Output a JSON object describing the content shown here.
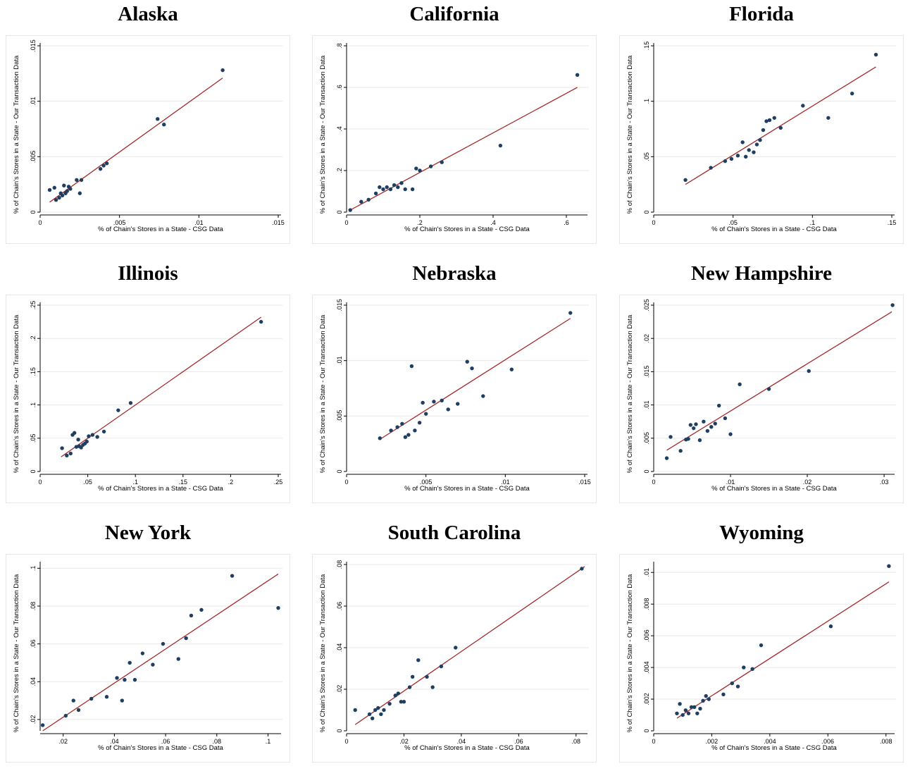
{
  "chart_data": [
    {
      "type": "scatter",
      "title": "Alaska",
      "xlabel": "% of Chain's Stores in a State - CSG Data",
      "ylabel": "% of Chain's Stores in a State - Our Transaction Data",
      "xlim": [
        0,
        0.015
      ],
      "ylim": [
        0,
        0.015
      ],
      "xticks": [
        0,
        0.005,
        0.01,
        0.015
      ],
      "xtick_labels": [
        "0",
        ".005",
        ".01",
        ".015"
      ],
      "yticks": [
        0,
        0.005,
        0.01,
        0.015
      ],
      "ytick_labels": [
        "0",
        ".005",
        ".01",
        ".015"
      ],
      "fit_line": {
        "x": [
          0.0006,
          0.0115
        ],
        "y": [
          0.0009,
          0.0121
        ]
      },
      "points": [
        [
          0.0006,
          0.002
        ],
        [
          0.0009,
          0.0022
        ],
        [
          0.001,
          0.0011
        ],
        [
          0.0012,
          0.0013
        ],
        [
          0.0013,
          0.0017
        ],
        [
          0.0014,
          0.0015
        ],
        [
          0.0015,
          0.0024
        ],
        [
          0.0016,
          0.0017
        ],
        [
          0.0017,
          0.0019
        ],
        [
          0.0018,
          0.0023
        ],
        [
          0.0019,
          0.0021
        ],
        [
          0.0023,
          0.0029
        ],
        [
          0.0025,
          0.0017
        ],
        [
          0.0026,
          0.0029
        ],
        [
          0.0038,
          0.0039
        ],
        [
          0.004,
          0.0042
        ],
        [
          0.0042,
          0.0044
        ],
        [
          0.0074,
          0.0084
        ],
        [
          0.0078,
          0.0079
        ],
        [
          0.0115,
          0.0128
        ]
      ]
    },
    {
      "type": "scatter",
      "title": "California",
      "xlabel": "% of Chain's Stores in a State - CSG Data",
      "ylabel": "% of Chain's Stores in a State - Our Transaction Data",
      "xlim": [
        0,
        0.65
      ],
      "ylim": [
        0,
        0.8
      ],
      "xticks": [
        0,
        0.2,
        0.4,
        0.6
      ],
      "xtick_labels": [
        "0",
        ".2",
        ".4",
        ".6"
      ],
      "yticks": [
        0,
        0.2,
        0.4,
        0.6,
        0.8
      ],
      "ytick_labels": [
        "0",
        ".2",
        ".4",
        ".6",
        ".8"
      ],
      "fit_line": {
        "x": [
          0.01,
          0.63
        ],
        "y": [
          0.01,
          0.6
        ]
      },
      "points": [
        [
          0.01,
          0.01
        ],
        [
          0.04,
          0.05
        ],
        [
          0.06,
          0.06
        ],
        [
          0.08,
          0.09
        ],
        [
          0.09,
          0.12
        ],
        [
          0.1,
          0.11
        ],
        [
          0.11,
          0.12
        ],
        [
          0.12,
          0.11
        ],
        [
          0.13,
          0.13
        ],
        [
          0.14,
          0.12
        ],
        [
          0.15,
          0.14
        ],
        [
          0.16,
          0.11
        ],
        [
          0.18,
          0.11
        ],
        [
          0.19,
          0.21
        ],
        [
          0.2,
          0.2
        ],
        [
          0.23,
          0.22
        ],
        [
          0.26,
          0.24
        ],
        [
          0.42,
          0.32
        ],
        [
          0.63,
          0.66
        ]
      ]
    },
    {
      "type": "scatter",
      "title": "Florida",
      "xlabel": "% of Chain's Stores in a State - CSG Data",
      "ylabel": "% of Chain's Stores in a State - Our Transaction Data",
      "xlim": [
        0,
        0.15
      ],
      "ylim": [
        0,
        0.15
      ],
      "xticks": [
        0,
        0.05,
        0.1,
        0.15
      ],
      "xtick_labels": [
        "0",
        ".05",
        ".1",
        ".15"
      ],
      "yticks": [
        0,
        0.05,
        0.1,
        0.15
      ],
      "ytick_labels": [
        "0",
        ".05",
        ".1",
        ".15"
      ],
      "fit_line": {
        "x": [
          0.02,
          0.14
        ],
        "y": [
          0.025,
          0.131
        ]
      },
      "points": [
        [
          0.02,
          0.029
        ],
        [
          0.036,
          0.04
        ],
        [
          0.045,
          0.046
        ],
        [
          0.049,
          0.048
        ],
        [
          0.053,
          0.051
        ],
        [
          0.056,
          0.063
        ],
        [
          0.058,
          0.05
        ],
        [
          0.06,
          0.056
        ],
        [
          0.063,
          0.054
        ],
        [
          0.065,
          0.061
        ],
        [
          0.067,
          0.065
        ],
        [
          0.069,
          0.074
        ],
        [
          0.071,
          0.082
        ],
        [
          0.073,
          0.083
        ],
        [
          0.076,
          0.085
        ],
        [
          0.08,
          0.076
        ],
        [
          0.094,
          0.096
        ],
        [
          0.11,
          0.085
        ],
        [
          0.125,
          0.107
        ],
        [
          0.14,
          0.142
        ]
      ]
    },
    {
      "type": "scatter",
      "title": "Illinois",
      "xlabel": "% of Chain's Stores in a State - CSG Data",
      "ylabel": "% of Chain's Stores in a State - Our Transaction Data",
      "xlim": [
        0,
        0.25
      ],
      "ylim": [
        0,
        0.25
      ],
      "xticks": [
        0,
        0.05,
        0.1,
        0.15,
        0.2,
        0.25
      ],
      "xtick_labels": [
        "0",
        ".05",
        ".1",
        ".15",
        ".2",
        ".25"
      ],
      "yticks": [
        0,
        0.05,
        0.1,
        0.15,
        0.2,
        0.25
      ],
      "ytick_labels": [
        "0",
        ".05",
        ".1",
        ".15",
        ".2",
        ".25"
      ],
      "fit_line": {
        "x": [
          0.022,
          0.232
        ],
        "y": [
          0.022,
          0.232
        ]
      },
      "points": [
        [
          0.023,
          0.035
        ],
        [
          0.028,
          0.024
        ],
        [
          0.032,
          0.027
        ],
        [
          0.034,
          0.055
        ],
        [
          0.036,
          0.058
        ],
        [
          0.038,
          0.037
        ],
        [
          0.04,
          0.048
        ],
        [
          0.041,
          0.038
        ],
        [
          0.043,
          0.036
        ],
        [
          0.045,
          0.04
        ],
        [
          0.047,
          0.042
        ],
        [
          0.049,
          0.045
        ],
        [
          0.051,
          0.053
        ],
        [
          0.055,
          0.055
        ],
        [
          0.06,
          0.052
        ],
        [
          0.067,
          0.06
        ],
        [
          0.082,
          0.092
        ],
        [
          0.095,
          0.103
        ],
        [
          0.232,
          0.225
        ]
      ]
    },
    {
      "type": "scatter",
      "title": "Nebraska",
      "xlabel": "% of Chain's Stores in a State - CSG Data",
      "ylabel": "% of Chain's Stores in a State - Our Transaction Data",
      "xlim": [
        0,
        0.015
      ],
      "ylim": [
        0,
        0.015
      ],
      "xticks": [
        0,
        0.005,
        0.01,
        0.015
      ],
      "xtick_labels": [
        "0",
        ".005",
        ".01",
        ".015"
      ],
      "yticks": [
        0,
        0.005,
        0.01,
        0.015
      ],
      "ytick_labels": [
        "0",
        ".005",
        ".01",
        ".015"
      ],
      "fit_line": {
        "x": [
          0.0021,
          0.0141
        ],
        "y": [
          0.0029,
          0.0138
        ]
      },
      "points": [
        [
          0.0021,
          0.003
        ],
        [
          0.0028,
          0.0037
        ],
        [
          0.0032,
          0.004
        ],
        [
          0.0035,
          0.0043
        ],
        [
          0.0037,
          0.0031
        ],
        [
          0.0039,
          0.0033
        ],
        [
          0.0041,
          0.0095
        ],
        [
          0.0043,
          0.0037
        ],
        [
          0.0046,
          0.0044
        ],
        [
          0.0048,
          0.0062
        ],
        [
          0.005,
          0.0052
        ],
        [
          0.0055,
          0.0063
        ],
        [
          0.006,
          0.0064
        ],
        [
          0.0064,
          0.0056
        ],
        [
          0.007,
          0.0061
        ],
        [
          0.0076,
          0.0099
        ],
        [
          0.0079,
          0.0093
        ],
        [
          0.0086,
          0.0068
        ],
        [
          0.0104,
          0.0092
        ],
        [
          0.0141,
          0.0143
        ]
      ]
    },
    {
      "type": "scatter",
      "title": "New Hampshire",
      "xlabel": "% of Chain's Stores in a State - CSG Data",
      "ylabel": "% of Chain's Stores in a State - Our Transaction Data",
      "xlim": [
        0,
        0.031
      ],
      "ylim": [
        0,
        0.025
      ],
      "xticks": [
        0,
        0.01,
        0.02,
        0.03
      ],
      "xtick_labels": [
        "0",
        ".01",
        ".02",
        ".03"
      ],
      "yticks": [
        0,
        0.005,
        0.01,
        0.015,
        0.02,
        0.025
      ],
      "ytick_labels": [
        "0",
        ".005",
        ".01",
        ".015",
        ".02",
        ".025"
      ],
      "fit_line": {
        "x": [
          0.0017,
          0.031
        ],
        "y": [
          0.0032,
          0.024
        ]
      },
      "points": [
        [
          0.0017,
          0.002
        ],
        [
          0.0022,
          0.0052
        ],
        [
          0.0035,
          0.0031
        ],
        [
          0.0042,
          0.0048
        ],
        [
          0.0045,
          0.0049
        ],
        [
          0.0048,
          0.007
        ],
        [
          0.0052,
          0.0065
        ],
        [
          0.0055,
          0.0071
        ],
        [
          0.006,
          0.0047
        ],
        [
          0.0065,
          0.0075
        ],
        [
          0.007,
          0.0061
        ],
        [
          0.0075,
          0.0067
        ],
        [
          0.008,
          0.0072
        ],
        [
          0.0085,
          0.0099
        ],
        [
          0.0093,
          0.008
        ],
        [
          0.01,
          0.0056
        ],
        [
          0.0112,
          0.0131
        ],
        [
          0.015,
          0.0124
        ],
        [
          0.0202,
          0.0151
        ],
        [
          0.0311,
          0.025
        ]
      ]
    },
    {
      "type": "scatter",
      "title": "New York",
      "xlabel": "% of Chain's Stores in a State - CSG Data",
      "ylabel": "% of Chain's Stores in a State - Our Transaction Data",
      "xlim": [
        0.011,
        0.104
      ],
      "ylim": [
        0.014,
        0.102
      ],
      "xticks": [
        0.02,
        0.04,
        0.06,
        0.08,
        0.1
      ],
      "xtick_labels": [
        ".02",
        ".04",
        ".06",
        ".08",
        ".1"
      ],
      "yticks": [
        0.02,
        0.04,
        0.06,
        0.08,
        0.1
      ],
      "ytick_labels": [
        ".02",
        ".04",
        ".06",
        ".08",
        ".1"
      ],
      "fit_line": {
        "x": [
          0.012,
          0.104
        ],
        "y": [
          0.014,
          0.097
        ]
      },
      "points": [
        [
          0.012,
          0.017
        ],
        [
          0.021,
          0.022
        ],
        [
          0.024,
          0.03
        ],
        [
          0.026,
          0.025
        ],
        [
          0.031,
          0.031
        ],
        [
          0.037,
          0.032
        ],
        [
          0.041,
          0.042
        ],
        [
          0.043,
          0.03
        ],
        [
          0.044,
          0.041
        ],
        [
          0.046,
          0.05
        ],
        [
          0.048,
          0.041
        ],
        [
          0.051,
          0.055
        ],
        [
          0.055,
          0.049
        ],
        [
          0.059,
          0.06
        ],
        [
          0.065,
          0.052
        ],
        [
          0.068,
          0.063
        ],
        [
          0.07,
          0.075
        ],
        [
          0.074,
          0.078
        ],
        [
          0.086,
          0.096
        ],
        [
          0.104,
          0.079
        ]
      ]
    },
    {
      "type": "scatter",
      "title": "South Carolina",
      "xlabel": "% of Chain's Stores in a State - CSG Data",
      "ylabel": "% of Chain's Stores in a State - Our Transaction Data",
      "xlim": [
        0,
        0.083
      ],
      "ylim": [
        0,
        0.08
      ],
      "xticks": [
        0,
        0.02,
        0.04,
        0.06,
        0.08
      ],
      "xtick_labels": [
        "0",
        ".02",
        ".04",
        ".06",
        ".08"
      ],
      "yticks": [
        0,
        0.02,
        0.04,
        0.06,
        0.08
      ],
      "ytick_labels": [
        "0",
        ".02",
        ".04",
        ".06",
        ".08"
      ],
      "fit_line": {
        "x": [
          0.003,
          0.083
        ],
        "y": [
          0.003,
          0.079
        ]
      },
      "points": [
        [
          0.003,
          0.01
        ],
        [
          0.008,
          0.008
        ],
        [
          0.009,
          0.006
        ],
        [
          0.01,
          0.01
        ],
        [
          0.011,
          0.011
        ],
        [
          0.012,
          0.008
        ],
        [
          0.013,
          0.01
        ],
        [
          0.015,
          0.013
        ],
        [
          0.017,
          0.017
        ],
        [
          0.018,
          0.018
        ],
        [
          0.019,
          0.014
        ],
        [
          0.02,
          0.014
        ],
        [
          0.022,
          0.021
        ],
        [
          0.023,
          0.026
        ],
        [
          0.025,
          0.034
        ],
        [
          0.028,
          0.026
        ],
        [
          0.03,
          0.021
        ],
        [
          0.033,
          0.031
        ],
        [
          0.038,
          0.04
        ],
        [
          0.082,
          0.078
        ]
      ]
    },
    {
      "type": "scatter",
      "title": "Wyoming",
      "xlabel": "% of Chain's Stores in a State - CSG Data",
      "ylabel": "% of Chain's Stores in a State - Our Transaction Data",
      "xlim": [
        0,
        0.0082
      ],
      "ylim": [
        0,
        0.0105
      ],
      "xticks": [
        0,
        0.002,
        0.004,
        0.006,
        0.008
      ],
      "xtick_labels": [
        "0",
        ".002",
        ".004",
        ".006",
        ".008"
      ],
      "yticks": [
        0,
        0.002,
        0.004,
        0.006,
        0.008,
        0.01
      ],
      "ytick_labels": [
        "0",
        ".002",
        ".004",
        ".006",
        ".008",
        ".01"
      ],
      "fit_line": {
        "x": [
          0.0008,
          0.0081
        ],
        "y": [
          0.0008,
          0.0094
        ]
      },
      "points": [
        [
          0.0008,
          0.0011
        ],
        [
          0.0009,
          0.0017
        ],
        [
          0.001,
          0.001
        ],
        [
          0.0011,
          0.0013
        ],
        [
          0.0012,
          0.0011
        ],
        [
          0.0013,
          0.0015
        ],
        [
          0.0014,
          0.0015
        ],
        [
          0.0015,
          0.0011
        ],
        [
          0.0016,
          0.0014
        ],
        [
          0.0017,
          0.0019
        ],
        [
          0.0018,
          0.0022
        ],
        [
          0.0019,
          0.002
        ],
        [
          0.0024,
          0.0023
        ],
        [
          0.0027,
          0.003
        ],
        [
          0.0029,
          0.0028
        ],
        [
          0.0031,
          0.004
        ],
        [
          0.0034,
          0.0039
        ],
        [
          0.0037,
          0.0054
        ],
        [
          0.0061,
          0.0066
        ],
        [
          0.0081,
          0.0104
        ]
      ]
    }
  ],
  "colors": {
    "point": "#1f3f62",
    "fit_line": "#a52a2a",
    "grid": "#e8e8e8",
    "frame": "#e6e6e6"
  }
}
